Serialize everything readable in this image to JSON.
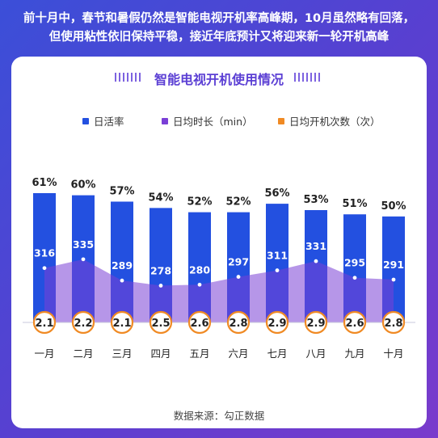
{
  "headline": {
    "line1": "前十月中，春节和暑假仍然是智能电视开机率高峰期，10月虽然略有回落，",
    "line2": "但使用粘性依旧保持平稳，接近年底预计又将迎来新一轮开机高峰"
  },
  "source": "数据来源：勾正数据",
  "colors": {
    "bar": "#2350e0",
    "area": "#7a3fd6",
    "circle": "#f08a24",
    "title": "#5b3fd4"
  },
  "chart_data": {
    "type": "bar",
    "title": "智能电视开机使用情况",
    "categories": [
      "一月",
      "二月",
      "三月",
      "四月",
      "五月",
      "六月",
      "七月",
      "八月",
      "九月",
      "十月"
    ],
    "series": [
      {
        "name": "日活率",
        "type": "bar",
        "unit": "%",
        "color": "#2350e0",
        "values": [
          61,
          60,
          57,
          54,
          52,
          52,
          56,
          53,
          51,
          50
        ],
        "labels": [
          "61%",
          "60%",
          "57%",
          "54%",
          "52%",
          "52%",
          "56%",
          "53%",
          "51%",
          "50%"
        ]
      },
      {
        "name": "日均时长（min）",
        "type": "area",
        "color": "#7a3fd6",
        "values": [
          316,
          335,
          289,
          278,
          280,
          297,
          311,
          331,
          295,
          291
        ]
      },
      {
        "name": "日均开机次数（次）",
        "type": "circle",
        "color": "#f08a24",
        "values": [
          2.1,
          2.2,
          2.1,
          2.5,
          2.6,
          2.8,
          2.9,
          2.9,
          2.6,
          2.8
        ],
        "labels": [
          "2.1",
          "2.2",
          "2.1",
          "2.5",
          "2.6",
          "2.8",
          "2.9",
          "2.9",
          "2.6",
          "2.8"
        ]
      }
    ],
    "ylim": [
      0,
      61
    ],
    "legend_position": "top",
    "grid": false
  }
}
